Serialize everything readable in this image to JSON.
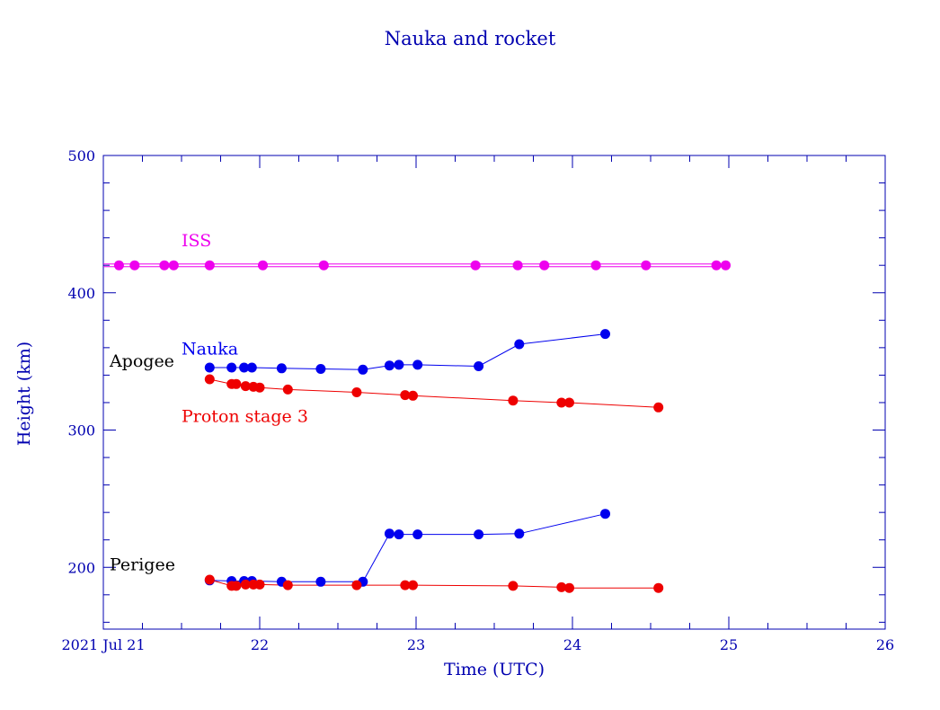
{
  "colors": {
    "axis": "#0000b0",
    "nauka": "#0000ee",
    "proton": "#ee0000",
    "iss": "#ee00ee",
    "annotation": "#000000"
  },
  "chart_data": {
    "type": "line",
    "title": "Nauka and rocket",
    "xlabel": "Time (UTC)",
    "ylabel": "Height (km)",
    "xlim": [
      21.0,
      26.0
    ],
    "ylim": [
      155,
      500
    ],
    "x_ticks": [
      {
        "value": 21,
        "label": "2021 Jul 21"
      },
      {
        "value": 22,
        "label": "22"
      },
      {
        "value": 23,
        "label": "23"
      },
      {
        "value": 24,
        "label": "24"
      },
      {
        "value": 25,
        "label": "25"
      },
      {
        "value": 26,
        "label": "26"
      }
    ],
    "y_ticks": [
      {
        "value": 200,
        "label": "200"
      },
      {
        "value": 300,
        "label": "300"
      },
      {
        "value": 400,
        "label": "400"
      },
      {
        "value": 500,
        "label": "500"
      }
    ],
    "annotations": [
      {
        "text": "Apogee",
        "x": 21.04,
        "y": 346
      },
      {
        "text": "Perigee",
        "x": 21.04,
        "y": 198
      }
    ],
    "series": [
      {
        "name": "ISS",
        "color_key": "iss",
        "label_at": {
          "x": 21.5,
          "y": 434
        },
        "lines": [
          {
            "x": [
              21.0,
              25.0
            ],
            "y": [
              421,
              421
            ]
          },
          {
            "x": [
              21.0,
              25.0
            ],
            "y": [
              419,
              419
            ]
          }
        ],
        "points": {
          "x": [
            21.1,
            21.2,
            21.39,
            21.45,
            21.68,
            22.02,
            22.41,
            23.38,
            23.65,
            23.82,
            24.15,
            24.47,
            24.92,
            24.98
          ],
          "y": [
            420,
            420,
            420,
            420,
            420,
            420,
            420,
            420,
            420,
            420,
            420,
            420,
            420,
            420
          ]
        }
      },
      {
        "name": "Nauka",
        "color_key": "nauka",
        "label_at": {
          "x": 21.5,
          "y": 355
        },
        "lines": [
          {
            "x": [
              21.68,
              21.82,
              21.9,
              21.95,
              22.14,
              22.39,
              22.66,
              22.83,
              22.89,
              23.01,
              23.4,
              23.66,
              24.21
            ],
            "y": [
              345.5,
              345.5,
              345.5,
              345.5,
              345,
              344.5,
              344,
              347,
              347.5,
              347.5,
              346.5,
              362.5,
              370
            ]
          },
          {
            "x": [
              21.68,
              21.82,
              21.9,
              21.95,
              22.14,
              22.39,
              22.66,
              22.83,
              22.89,
              23.01,
              23.4,
              23.66,
              24.21
            ],
            "y": [
              190.5,
              190,
              190,
              190,
              189.5,
              189.5,
              189.5,
              224.5,
              224,
              224,
              224,
              224.5,
              239
            ]
          }
        ],
        "points": {
          "x": [
            21.68,
            21.82,
            21.9,
            21.95,
            22.14,
            22.39,
            22.66,
            22.83,
            22.89,
            23.01,
            23.4,
            23.66,
            24.21,
            21.68,
            21.82,
            21.9,
            21.95,
            22.14,
            22.39,
            22.66,
            22.83,
            22.89,
            23.01,
            23.4,
            23.66,
            24.21
          ],
          "y": [
            345.5,
            345.5,
            345.5,
            345.5,
            345,
            344.5,
            344,
            347,
            347.5,
            347.5,
            346.5,
            362.5,
            370,
            190.5,
            190,
            190,
            190,
            189.5,
            189.5,
            189.5,
            224.5,
            224,
            224,
            224,
            224.5,
            239
          ]
        }
      },
      {
        "name": "Proton stage 3",
        "color_key": "proton",
        "label_at": {
          "x": 21.5,
          "y": 306
        },
        "lines": [
          {
            "x": [
              21.68,
              21.82,
              21.85,
              21.91,
              21.96,
              22.0,
              22.18,
              22.62,
              22.93,
              22.98,
              23.62,
              23.93,
              23.98,
              24.55
            ],
            "y": [
              337,
              333.5,
              333.5,
              332,
              331.5,
              331,
              329.5,
              327.5,
              325.5,
              325,
              321.5,
              320,
              320,
              316.5
            ]
          },
          {
            "x": [
              21.68,
              21.82,
              21.85,
              21.91,
              21.96,
              22.0,
              22.18,
              22.62,
              22.93,
              22.98,
              23.62,
              23.93,
              23.98,
              24.55
            ],
            "y": [
              191,
              186.5,
              186.5,
              187.5,
              187.5,
              187.5,
              187,
              187,
              187,
              187,
              186.5,
              185.5,
              185,
              185
            ]
          }
        ],
        "points": {
          "x": [
            21.68,
            21.82,
            21.85,
            21.91,
            21.96,
            22.0,
            22.18,
            22.62,
            22.93,
            22.98,
            23.62,
            23.93,
            23.98,
            24.55,
            21.68,
            21.82,
            21.85,
            21.91,
            21.96,
            22.0,
            22.18,
            22.62,
            22.93,
            22.98,
            23.62,
            23.93,
            23.98,
            24.55
          ],
          "y": [
            337,
            333.5,
            333.5,
            332,
            331.5,
            331,
            329.5,
            327.5,
            325.5,
            325,
            321.5,
            320,
            320,
            316.5,
            191,
            186.5,
            186.5,
            187.5,
            187.5,
            187.5,
            187,
            187,
            187,
            187,
            186.5,
            185.5,
            185,
            185
          ]
        }
      }
    ]
  }
}
